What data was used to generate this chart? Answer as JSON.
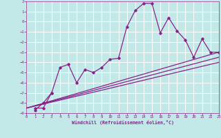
{
  "xlabel": "Windchill (Refroidissement éolien,°C)",
  "background_color": "#c2e8e8",
  "grid_color": "#ffffff",
  "line_color": "#882288",
  "xlim": [
    0,
    23
  ],
  "ylim": [
    -9,
    2
  ],
  "xticks": [
    0,
    1,
    2,
    3,
    4,
    5,
    6,
    7,
    8,
    9,
    10,
    11,
    12,
    13,
    14,
    15,
    16,
    17,
    18,
    19,
    20,
    21,
    22,
    23
  ],
  "yticks": [
    -9,
    -8,
    -7,
    -6,
    -5,
    -4,
    -3,
    -2,
    -1,
    0,
    1,
    2
  ],
  "main_series_x": [
    1,
    2,
    3,
    4,
    5,
    6,
    7,
    8,
    9,
    10,
    11,
    12,
    13,
    14,
    15,
    16,
    17,
    18,
    19,
    20,
    21,
    22,
    23
  ],
  "main_series_y": [
    -8.5,
    -8.5,
    -7.0,
    -4.5,
    -4.2,
    -6.0,
    -4.7,
    -5.0,
    -4.5,
    -3.7,
    -3.6,
    -0.5,
    1.1,
    1.8,
    1.8,
    -1.1,
    0.4,
    -0.9,
    -1.8,
    -3.5,
    -1.7,
    -3.0,
    -3.0
  ],
  "short_series_x": [
    1,
    2,
    3
  ],
  "short_series_y": [
    -8.7,
    -8.0,
    -7.0
  ],
  "straight_lines": [
    [
      [
        0,
        23
      ],
      [
        -8.5,
        -3.0
      ]
    ],
    [
      [
        0,
        23
      ],
      [
        -8.5,
        -3.5
      ]
    ],
    [
      [
        0,
        23
      ],
      [
        -8.5,
        -4.0
      ]
    ]
  ]
}
